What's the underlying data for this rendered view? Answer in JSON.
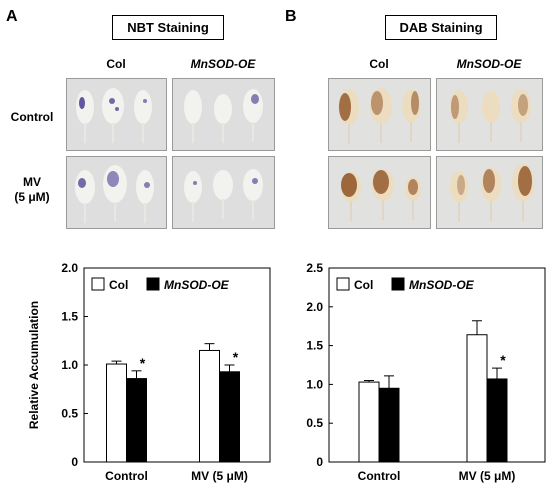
{
  "panels": [
    {
      "letter": "A",
      "stain_label": "NBT Staining",
      "columns": [
        "Col",
        "MnSOD-OE"
      ],
      "rows": [
        "Control",
        "MV",
        "(5 μM)"
      ],
      "stain_color": "#3d2f8a"
    },
    {
      "letter": "B",
      "stain_label": "DAB Staining",
      "columns": [
        "Col",
        "MnSOD-OE"
      ],
      "rows": [
        "Control",
        "MV",
        "(5 μM)"
      ],
      "stain_color": "#8a4a1a"
    }
  ],
  "chart_data": [
    {
      "type": "bar",
      "title": "",
      "ylabel": "Relative Accumulation",
      "xlabel": "",
      "categories": [
        "Control",
        "MV (5 μM)"
      ],
      "ylim": [
        0,
        2.0
      ],
      "yticks": [
        "0",
        "0.5",
        "1.0",
        "1.5",
        "2.0"
      ],
      "grid": false,
      "legend": "top-left",
      "series": [
        {
          "name": "Col",
          "color": "#ffffff",
          "values": [
            1.01,
            1.15
          ],
          "errors": [
            0.03,
            0.07
          ]
        },
        {
          "name": "MnSOD-OE",
          "color": "#000000",
          "values": [
            0.86,
            0.93
          ],
          "errors": [
            0.08,
            0.07
          ]
        }
      ],
      "annotations": [
        {
          "text": "*",
          "category": "Control",
          "series": "MnSOD-OE"
        },
        {
          "text": "*",
          "category": "MV (5 μM)",
          "series": "MnSOD-OE"
        }
      ]
    },
    {
      "type": "bar",
      "title": "",
      "ylabel": "",
      "xlabel": "",
      "categories": [
        "Control",
        "MV (5 μM)"
      ],
      "ylim": [
        0,
        2.5
      ],
      "yticks": [
        "0",
        "0.5",
        "1.0",
        "1.5",
        "2.0",
        "2.5"
      ],
      "grid": false,
      "legend": "top-left",
      "series": [
        {
          "name": "Col",
          "color": "#ffffff",
          "values": [
            1.03,
            1.64
          ],
          "errors": [
            0.02,
            0.18
          ]
        },
        {
          "name": "MnSOD-OE",
          "color": "#000000",
          "values": [
            0.95,
            1.07
          ],
          "errors": [
            0.16,
            0.14
          ]
        }
      ],
      "annotations": [
        {
          "text": "*",
          "category": "MV (5 μM)",
          "series": "MnSOD-OE"
        }
      ]
    }
  ]
}
